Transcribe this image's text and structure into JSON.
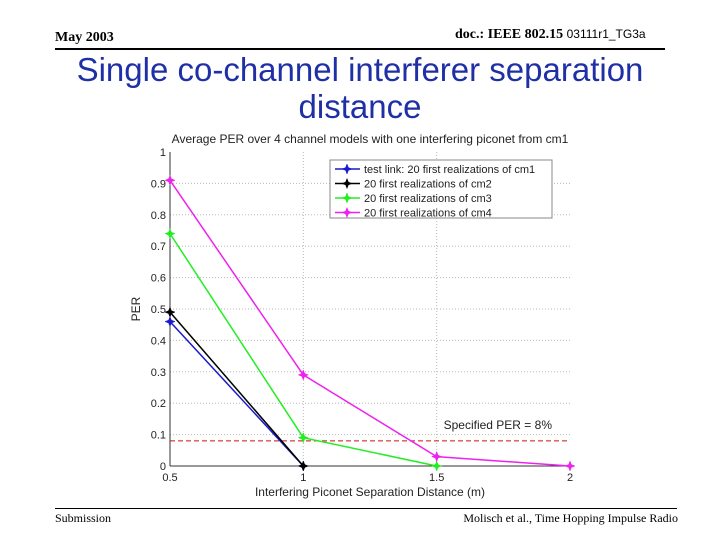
{
  "header": {
    "date": "May 2003",
    "doc_prefix": "doc.: IEEE 802.15 ",
    "doc_number": "03111r1_TG3a"
  },
  "slide": {
    "title_line1": "Single co-channel interferer separation",
    "title_line2": "distance"
  },
  "footer": {
    "left": "Submission",
    "right": "Molisch et al., Time Hopping Impulse Radio"
  },
  "chart_data": {
    "type": "line",
    "title": "Average PER over 4 channel models with one interfering piconet from cm1",
    "xlabel": "Interfering Piconet Separation Distance (m)",
    "ylabel": "PER",
    "xlim": [
      0.5,
      2
    ],
    "ylim": [
      0,
      1
    ],
    "x_ticks": [
      "0.5",
      "1",
      "1.5",
      "2"
    ],
    "y_ticks": [
      "0",
      "0.1",
      "0.2",
      "0.3",
      "0.4",
      "0.5",
      "0.6",
      "0.7",
      "0.8",
      "0.9",
      "1"
    ],
    "grid": true,
    "legend_position": "top-right",
    "series": [
      {
        "name": "test link: 20 first realizations of cm1",
        "color": "#1a1acc",
        "x": [
          0.5,
          1.0
        ],
        "y": [
          0.46,
          0.0
        ]
      },
      {
        "name": "20 first realizations of cm2",
        "color": "#000000",
        "x": [
          0.5,
          1.0
        ],
        "y": [
          0.49,
          0.0
        ]
      },
      {
        "name": "20 first realizations of cm3",
        "color": "#22ee22",
        "x": [
          0.5,
          1.0,
          1.5
        ],
        "y": [
          0.74,
          0.09,
          0.0
        ]
      },
      {
        "name": "20 first realizations of cm4",
        "color": "#ee22ee",
        "x": [
          0.5,
          1.0,
          1.5,
          2.0
        ],
        "y": [
          0.91,
          0.29,
          0.03,
          0.0
        ]
      }
    ],
    "reference_line": {
      "y": 0.08,
      "color": "#cc1111",
      "label": "Specified PER = 8%"
    }
  }
}
